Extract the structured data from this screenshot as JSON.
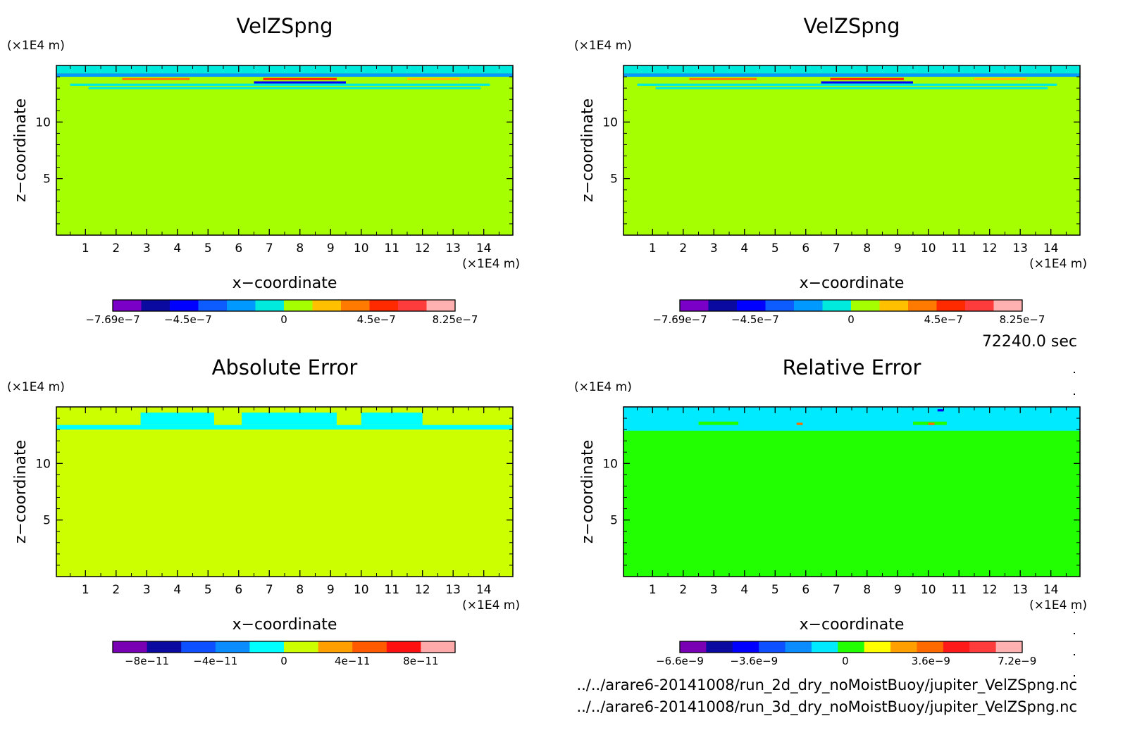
{
  "time_label": "72240.0 sec",
  "footer_lines": [
    "../../arare6-20141008/run_2d_dry_noMoistBuoy/jupiter_VelZSpng.nc",
    "../../arare6-20141008/run_3d_dry_noMoistBuoy/jupiter_VelZSpng.nc"
  ],
  "chart_data": [
    {
      "type": "heatmap",
      "title": "VelZSpng",
      "xlabel": "x−coordinate",
      "ylabel": "z−coordinate",
      "x_unit": "(×1E4 m)",
      "y_unit": "(×1E4 m)",
      "xlim": [
        0.05,
        14.95
      ],
      "ylim": [
        0,
        15
      ],
      "x_ticks": [
        1,
        2,
        3,
        4,
        5,
        6,
        7,
        8,
        9,
        10,
        11,
        12,
        13,
        14
      ],
      "y_ticks": [
        5,
        10
      ],
      "background_color": "#a6ff00",
      "colorbar": {
        "colors": [
          "#7a00c8",
          "#0a0aa0",
          "#0000ff",
          "#0c5cff",
          "#0099ff",
          "#00eadd",
          "#a6ff00",
          "#ffc000",
          "#ff7a00",
          "#ff2a00",
          "#ff3c3c",
          "#ffb0b0"
        ],
        "tick_labels": [
          "−7.69e−7",
          "−4.5e−7",
          "0",
          "4.5e−7",
          "8.25e−7"
        ],
        "tick_positions": [
          0,
          0.22,
          0.5,
          0.77,
          1
        ]
      },
      "bands": [
        {
          "z0": 14.3,
          "z1": 15.0,
          "x0": 0.05,
          "x1": 14.95,
          "color": "#00eadd"
        },
        {
          "z0": 14.0,
          "z1": 14.3,
          "x0": 0.05,
          "x1": 14.95,
          "color": "#0099ff"
        },
        {
          "z0": 13.4,
          "z1": 13.6,
          "x0": 6.5,
          "x1": 9.5,
          "color": "#0000ff"
        },
        {
          "z0": 13.7,
          "z1": 13.9,
          "x0": 2.2,
          "x1": 4.4,
          "color": "#ff7a00"
        },
        {
          "z0": 13.7,
          "z1": 13.9,
          "x0": 6.8,
          "x1": 9.2,
          "color": "#ff2a00"
        },
        {
          "z0": 13.7,
          "z1": 13.9,
          "x0": 11.5,
          "x1": 13.2,
          "color": "#ffc000"
        },
        {
          "z0": 13.2,
          "z1": 13.4,
          "x0": 0.5,
          "x1": 14.2,
          "color": "#00eadd"
        },
        {
          "z0": 12.9,
          "z1": 13.1,
          "x0": 1.1,
          "x1": 13.9,
          "color": "#00eadd"
        }
      ]
    },
    {
      "type": "heatmap",
      "title": "VelZSpng",
      "xlabel": "x−coordinate",
      "ylabel": "z−coordinate",
      "x_unit": "(×1E4 m)",
      "y_unit": "(×1E4 m)",
      "xlim": [
        0.05,
        14.95
      ],
      "ylim": [
        0,
        15
      ],
      "x_ticks": [
        1,
        2,
        3,
        4,
        5,
        6,
        7,
        8,
        9,
        10,
        11,
        12,
        13,
        14
      ],
      "y_ticks": [
        5,
        10
      ],
      "background_color": "#a6ff00",
      "colorbar": {
        "colors": [
          "#7a00c8",
          "#0a0aa0",
          "#0000ff",
          "#0c5cff",
          "#0099ff",
          "#00eadd",
          "#a6ff00",
          "#ffc000",
          "#ff7a00",
          "#ff2a00",
          "#ff3c3c",
          "#ffb0b0"
        ],
        "tick_labels": [
          "−7.69e−7",
          "−4.5e−7",
          "0",
          "4.5e−7",
          "8.25e−7"
        ],
        "tick_positions": [
          0,
          0.22,
          0.5,
          0.77,
          1
        ]
      },
      "bands": [
        {
          "z0": 14.3,
          "z1": 15.0,
          "x0": 0.05,
          "x1": 14.95,
          "color": "#00eadd"
        },
        {
          "z0": 14.0,
          "z1": 14.3,
          "x0": 0.05,
          "x1": 14.95,
          "color": "#0099ff"
        },
        {
          "z0": 13.4,
          "z1": 13.6,
          "x0": 6.5,
          "x1": 9.5,
          "color": "#0000ff"
        },
        {
          "z0": 13.7,
          "z1": 13.9,
          "x0": 2.2,
          "x1": 4.4,
          "color": "#ff7a00"
        },
        {
          "z0": 13.7,
          "z1": 13.9,
          "x0": 6.8,
          "x1": 9.2,
          "color": "#ff2a00"
        },
        {
          "z0": 13.7,
          "z1": 13.9,
          "x0": 11.5,
          "x1": 13.2,
          "color": "#ffc000"
        },
        {
          "z0": 13.2,
          "z1": 13.4,
          "x0": 0.5,
          "x1": 14.2,
          "color": "#00eadd"
        },
        {
          "z0": 12.9,
          "z1": 13.1,
          "x0": 1.1,
          "x1": 13.9,
          "color": "#00eadd"
        }
      ]
    },
    {
      "type": "heatmap",
      "title": "Absolute Error",
      "xlabel": "x−coordinate",
      "ylabel": "z−coordinate",
      "x_unit": "(×1E4 m)",
      "y_unit": "(×1E4 m)",
      "xlim": [
        0.05,
        14.95
      ],
      "ylim": [
        0,
        15
      ],
      "x_ticks": [
        1,
        2,
        3,
        4,
        5,
        6,
        7,
        8,
        9,
        10,
        11,
        12,
        13,
        14
      ],
      "y_ticks": [
        5,
        10
      ],
      "background_color": "#ccff00",
      "colorbar": {
        "colors": [
          "#7a00b4",
          "#0a0aa0",
          "#0c50ff",
          "#0a8cff",
          "#00ffff",
          "#ccff00",
          "#ffa000",
          "#ff5a00",
          "#ff1010",
          "#ffaaaa"
        ],
        "tick_labels": [
          "−8e−11",
          "−4e−11",
          "0",
          "4e−11",
          "8e−11"
        ],
        "tick_positions": [
          0.1,
          0.3,
          0.5,
          0.7,
          0.9
        ]
      },
      "bands": [
        {
          "z0": 13.0,
          "z1": 13.4,
          "x0": 0.05,
          "x1": 14.95,
          "color": "#00ffff"
        },
        {
          "z0": 13.4,
          "z1": 14.5,
          "x0": 2.8,
          "x1": 5.2,
          "color": "#00ffff"
        },
        {
          "z0": 13.4,
          "z1": 14.5,
          "x0": 6.1,
          "x1": 9.2,
          "color": "#00ffff"
        },
        {
          "z0": 13.4,
          "z1": 14.5,
          "x0": 10.0,
          "x1": 12.0,
          "color": "#00ffff"
        }
      ]
    },
    {
      "type": "heatmap",
      "title": "Relative Error",
      "xlabel": "x−coordinate",
      "ylabel": "z−coordinate",
      "x_unit": "(×1E4 m)",
      "y_unit": "(×1E4 m)",
      "xlim": [
        0.05,
        14.95
      ],
      "ylim": [
        0,
        15
      ],
      "x_ticks": [
        1,
        2,
        3,
        4,
        5,
        6,
        7,
        8,
        9,
        10,
        11,
        12,
        13,
        14
      ],
      "y_ticks": [
        5,
        10
      ],
      "background_color": "#22ff00",
      "colorbar": {
        "colors": [
          "#7a00b4",
          "#0a0aa0",
          "#0000ff",
          "#0c50ff",
          "#0a8cff",
          "#00eaff",
          "#22ff00",
          "#ffff00",
          "#ffa000",
          "#ff6a00",
          "#ff1a1a",
          "#ff3c3c",
          "#ffb0b0"
        ],
        "tick_labels": [
          "−6.6e−9",
          "−3.6e−9",
          "0",
          "3.6e−9",
          "7.2e−9"
        ],
        "tick_positions": [
          0,
          0.2167,
          0.4833,
          0.7333,
          0.985
        ]
      },
      "bands": [
        {
          "z0": 12.9,
          "z1": 15.0,
          "x0": 0.05,
          "x1": 14.95,
          "color": "#00eaff"
        },
        {
          "z0": 13.4,
          "z1": 13.7,
          "x0": 2.5,
          "x1": 3.8,
          "color": "#22ff00"
        },
        {
          "z0": 13.4,
          "z1": 13.7,
          "x0": 9.5,
          "x1": 10.6,
          "color": "#22ff00"
        },
        {
          "z0": 13.4,
          "z1": 13.6,
          "x0": 5.7,
          "x1": 5.9,
          "color": "#ff6a00"
        },
        {
          "z0": 13.4,
          "z1": 13.6,
          "x0": 10.0,
          "x1": 10.2,
          "color": "#ff6a00"
        },
        {
          "z0": 14.6,
          "z1": 14.8,
          "x0": 10.3,
          "x1": 10.5,
          "color": "#0000ff"
        }
      ]
    }
  ]
}
